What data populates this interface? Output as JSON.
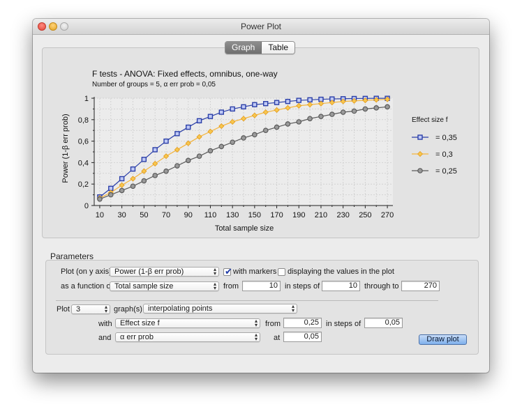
{
  "window": {
    "title": "Power Plot"
  },
  "tabs": [
    {
      "label": "Graph",
      "active": true
    },
    {
      "label": "Table",
      "active": false
    }
  ],
  "chart_data": {
    "type": "line",
    "title": "F tests - ANOVA: Fixed effects, omnibus, one-way",
    "subtitle": "Number of groups = 5, α err prob = 0,05",
    "xlabel": "Total sample size",
    "ylabel": "Power (1-β err prob)",
    "xlim": [
      5,
      275
    ],
    "ylim": [
      0,
      1
    ],
    "x": [
      10,
      20,
      30,
      40,
      50,
      60,
      70,
      80,
      90,
      100,
      110,
      120,
      130,
      140,
      150,
      160,
      170,
      180,
      190,
      200,
      210,
      220,
      230,
      240,
      250,
      260,
      270
    ],
    "x_ticks": [
      "10",
      "30",
      "50",
      "70",
      "90",
      "110",
      "130",
      "150",
      "170",
      "190",
      "210",
      "230",
      "250",
      "270"
    ],
    "y_ticks": [
      "0",
      "0,2",
      "0,4",
      "0,6",
      "0,8",
      "1"
    ],
    "grid": true,
    "legend_title": "Effect size f",
    "legend_position": "right",
    "series": [
      {
        "name": "= 0,35",
        "marker": "square",
        "color": "#2b3fa8",
        "fill": "#bfc9f5",
        "values": [
          0.08,
          0.16,
          0.25,
          0.34,
          0.43,
          0.52,
          0.6,
          0.67,
          0.73,
          0.79,
          0.83,
          0.87,
          0.9,
          0.92,
          0.94,
          0.95,
          0.96,
          0.97,
          0.98,
          0.985,
          0.99,
          0.993,
          0.995,
          0.997,
          0.998,
          0.999,
          0.999
        ]
      },
      {
        "name": "= 0,3",
        "marker": "diamond",
        "color": "#f4b43a",
        "fill": "#f7c64e",
        "values": [
          0.07,
          0.12,
          0.19,
          0.25,
          0.32,
          0.39,
          0.46,
          0.52,
          0.58,
          0.64,
          0.69,
          0.74,
          0.78,
          0.81,
          0.84,
          0.87,
          0.89,
          0.91,
          0.93,
          0.94,
          0.95,
          0.96,
          0.97,
          0.975,
          0.98,
          0.985,
          0.99
        ]
      },
      {
        "name": "= 0,25",
        "marker": "circle",
        "color": "#5a5a5a",
        "fill": "#9a9a9a",
        "values": [
          0.06,
          0.1,
          0.14,
          0.18,
          0.23,
          0.28,
          0.32,
          0.37,
          0.42,
          0.46,
          0.51,
          0.55,
          0.59,
          0.63,
          0.66,
          0.7,
          0.73,
          0.76,
          0.78,
          0.81,
          0.83,
          0.85,
          0.87,
          0.88,
          0.9,
          0.91,
          0.92
        ]
      }
    ]
  },
  "parameters": {
    "section_label": "Parameters",
    "plot_y_label": "Plot (on y axis)",
    "plot_y_value": "Power (1-β err prob)",
    "with_markers_label": "with markers",
    "with_markers_checked": true,
    "display_values_label": "displaying the values in the plot",
    "display_values_checked": false,
    "function_of_label": "as a function of",
    "function_of_value": "Total sample size",
    "from_label": "from",
    "from_value": "10",
    "steps_label": "in steps of",
    "steps_value": "10",
    "through_label": "through to",
    "through_value": "270",
    "plot_label": "Plot",
    "plot_count": "3",
    "graphs_label": "graph(s)",
    "graphs_mode": "interpolating points",
    "with_label": "with",
    "with_value": "Effect size f",
    "with_from_label": "from",
    "with_from_value": "0,25",
    "with_steps_label": "in steps of",
    "with_steps_value": "0,05",
    "and_label": "and",
    "and_value": "α err prob",
    "at_label": "at",
    "at_value": "0,05",
    "draw_button": "Draw plot"
  }
}
